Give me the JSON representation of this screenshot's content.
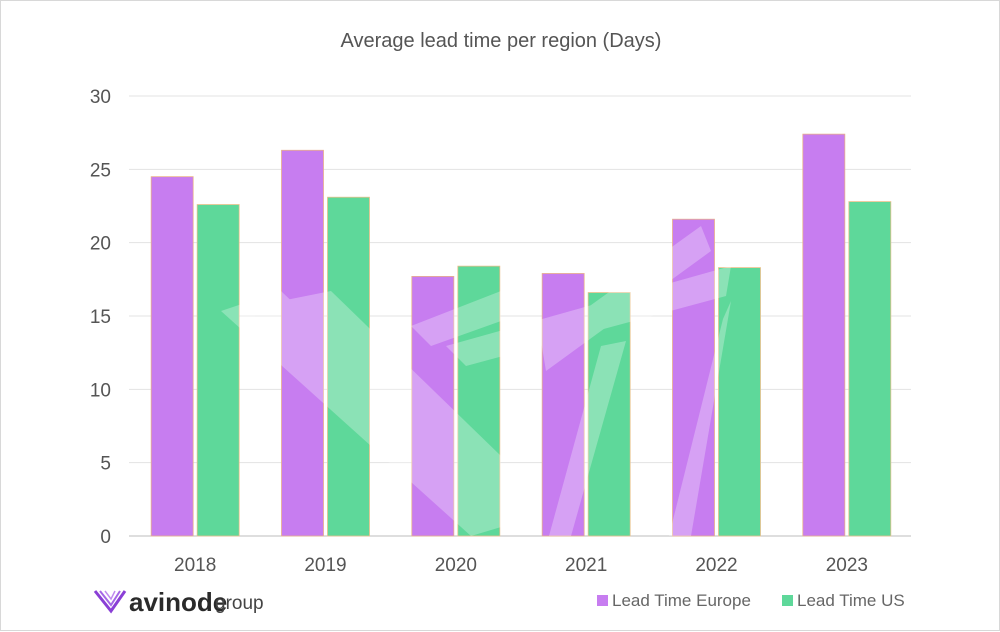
{
  "chart_data": {
    "type": "bar",
    "title": "Average lead time per region (Days)",
    "categories": [
      "2018",
      "2019",
      "2020",
      "2021",
      "2022",
      "2023"
    ],
    "series": [
      {
        "name": "Lead Time Europe",
        "values": [
          24.5,
          26.3,
          17.7,
          17.9,
          21.6,
          27.4
        ],
        "color": "#c77df0"
      },
      {
        "name": "Lead Time US",
        "values": [
          22.6,
          23.1,
          18.4,
          16.6,
          18.3,
          22.8
        ],
        "color": "#5ed89a"
      }
    ],
    "ylim": [
      0,
      30
    ],
    "yticks": [
      "0",
      "5",
      "10",
      "15",
      "20",
      "25",
      "30"
    ],
    "grid": true,
    "legend_position": "bottom-right"
  },
  "brand": {
    "logo_name": "avinode",
    "logo_suffix": "group",
    "logo_icon": "avinode-chevron-icon",
    "logo_color": "#8a3fd6"
  }
}
